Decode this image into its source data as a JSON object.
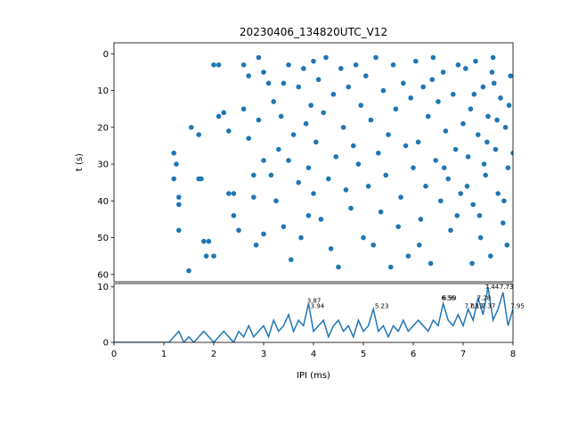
{
  "chart_data": [
    {
      "type": "scatter",
      "title": "20230406_134820UTC_V12",
      "ylabel": "t (s)",
      "color": "#1f77b4",
      "xlim": [
        0,
        8
      ],
      "ylim": [
        62,
        -3
      ],
      "yticks": [
        0,
        10,
        20,
        30,
        40,
        50,
        60
      ],
      "x": [
        1.2,
        1.2,
        1.25,
        1.3,
        1.3,
        1.3,
        1.5,
        1.55,
        1.7,
        1.7,
        1.75,
        1.8,
        1.85,
        1.9,
        2.0,
        2.0,
        2.1,
        2.1,
        2.2,
        2.3,
        2.3,
        2.4,
        2.4,
        2.5,
        2.6,
        2.6,
        2.7,
        2.7,
        2.8,
        2.8,
        2.85,
        2.9,
        2.9,
        3.0,
        3.0,
        3.0,
        3.1,
        3.15,
        3.2,
        3.25,
        3.3,
        3.35,
        3.4,
        3.4,
        3.5,
        3.5,
        3.55,
        3.6,
        3.7,
        3.7,
        3.75,
        3.8,
        3.85,
        3.9,
        3.9,
        3.95,
        4.0,
        4.0,
        4.05,
        4.1,
        4.15,
        4.2,
        4.25,
        4.3,
        4.35,
        4.4,
        4.45,
        4.5,
        4.55,
        4.6,
        4.65,
        4.7,
        4.75,
        4.8,
        4.85,
        4.9,
        4.95,
        5.0,
        5.05,
        5.1,
        5.15,
        5.2,
        5.25,
        5.3,
        5.35,
        5.4,
        5.45,
        5.5,
        5.55,
        5.6,
        5.65,
        5.7,
        5.75,
        5.8,
        5.85,
        5.9,
        5.95,
        6.0,
        6.05,
        6.1,
        6.15,
        6.2,
        6.25,
        6.3,
        6.35,
        6.4,
        6.45,
        6.5,
        6.55,
        6.6,
        6.65,
        6.7,
        6.75,
        6.8,
        6.85,
        6.9,
        6.95,
        7.0,
        6.12,
        6.38,
        6.62,
        6.88,
        7.05,
        7.1,
        7.15,
        7.2,
        7.25,
        7.3,
        7.35,
        7.4,
        7.45,
        7.5,
        7.55,
        7.6,
        7.65,
        7.7,
        7.75,
        7.8,
        7.85,
        7.9,
        7.95,
        8.0,
        7.08,
        7.22,
        7.33,
        7.48,
        7.58,
        7.68,
        7.82,
        7.92,
        7.18,
        7.42,
        7.62,
        7.88
      ],
      "values": [
        34,
        27,
        30,
        48,
        39,
        41,
        59,
        20,
        22,
        34,
        34,
        51,
        55,
        51,
        3,
        55,
        3,
        17,
        16,
        21,
        38,
        44,
        38,
        48,
        3,
        15,
        23,
        6,
        33,
        39,
        52,
        1,
        18,
        5,
        29,
        49,
        8,
        33,
        13,
        40,
        26,
        17,
        8,
        47,
        3,
        29,
        56,
        22,
        9,
        35,
        50,
        4,
        19,
        31,
        44,
        14,
        2,
        38,
        24,
        7,
        45,
        16,
        1,
        34,
        53,
        11,
        28,
        58,
        4,
        20,
        37,
        9,
        42,
        25,
        3,
        30,
        14,
        50,
        6,
        36,
        18,
        52,
        1,
        27,
        43,
        10,
        33,
        22,
        58,
        3,
        15,
        47,
        39,
        8,
        25,
        55,
        12,
        31,
        2,
        24,
        45,
        9,
        36,
        17,
        57,
        1,
        29,
        13,
        40,
        5,
        21,
        34,
        48,
        11,
        26,
        3,
        38,
        19,
        52,
        7,
        31,
        44,
        4,
        28,
        15,
        41,
        2,
        22,
        50,
        9,
        33,
        17,
        55,
        1,
        26,
        38,
        12,
        46,
        20,
        31,
        6,
        27,
        36,
        11,
        44,
        24,
        5,
        18,
        40,
        14,
        57,
        30,
        8,
        52
      ]
    },
    {
      "type": "line",
      "xlabel": "IPI (ms)",
      "color": "#1f77b4",
      "xlim": [
        0,
        8
      ],
      "ylim": [
        0,
        10.6
      ],
      "xticks": [
        0,
        1,
        2,
        3,
        4,
        5,
        6,
        7,
        8
      ],
      "yticks": [
        0,
        10
      ],
      "x": [
        0,
        0.1,
        0.2,
        0.3,
        0.4,
        0.5,
        0.6,
        0.7,
        0.8,
        0.9,
        1.0,
        1.1,
        1.2,
        1.3,
        1.4,
        1.5,
        1.6,
        1.7,
        1.8,
        1.9,
        2.0,
        2.1,
        2.2,
        2.3,
        2.4,
        2.5,
        2.6,
        2.7,
        2.8,
        2.9,
        3.0,
        3.1,
        3.2,
        3.3,
        3.4,
        3.5,
        3.6,
        3.7,
        3.8,
        3.9,
        4.0,
        4.1,
        4.2,
        4.3,
        4.4,
        4.5,
        4.6,
        4.7,
        4.8,
        4.9,
        5.0,
        5.1,
        5.2,
        5.3,
        5.4,
        5.5,
        5.6,
        5.7,
        5.8,
        5.9,
        6.0,
        6.1,
        6.2,
        6.3,
        6.4,
        6.5,
        6.6,
        6.7,
        6.8,
        6.9,
        7.0,
        7.1,
        7.2,
        7.3,
        7.4,
        7.5,
        7.6,
        7.7,
        7.8,
        7.9,
        8.0
      ],
      "values": [
        0,
        0,
        0,
        0,
        0,
        0,
        0,
        0,
        0,
        0,
        0,
        0,
        1,
        2,
        0,
        1,
        0,
        1,
        2,
        1,
        0,
        1,
        2,
        1,
        0,
        2,
        1,
        3,
        1,
        2,
        3,
        1,
        4,
        2,
        3,
        5,
        2,
        4,
        3,
        7,
        2,
        3,
        4,
        1,
        3,
        4,
        2,
        3,
        1,
        4,
        2,
        3,
        6,
        2,
        3,
        1,
        3,
        2,
        4,
        2,
        3,
        4,
        3,
        2,
        4,
        3,
        7,
        4,
        3,
        5,
        3,
        6,
        4,
        8,
        5,
        10,
        4,
        6,
        9,
        3,
        6
      ],
      "annotations": [
        {
          "x": 3.87,
          "y": 7,
          "text": "3.87"
        },
        {
          "x": 3.94,
          "y": 6,
          "text": "3.94"
        },
        {
          "x": 5.23,
          "y": 6,
          "text": "5.23"
        },
        {
          "x": 6.56,
          "y": 7.5,
          "text": "6.56"
        },
        {
          "x": 6.59,
          "y": 7.5,
          "text": "6.59"
        },
        {
          "x": 7.03,
          "y": 6,
          "text": "7.03"
        },
        {
          "x": 7.13,
          "y": 6,
          "text": "7.13"
        },
        {
          "x": 7.28,
          "y": 7.5,
          "text": "7.28"
        },
        {
          "x": 7.37,
          "y": 6,
          "text": "7.37"
        },
        {
          "x": 7.44,
          "y": 9.5,
          "text": "7.44"
        },
        {
          "x": 7.73,
          "y": 9.5,
          "text": "7.73"
        },
        {
          "x": 7.95,
          "y": 6,
          "text": "7.95"
        }
      ]
    }
  ]
}
